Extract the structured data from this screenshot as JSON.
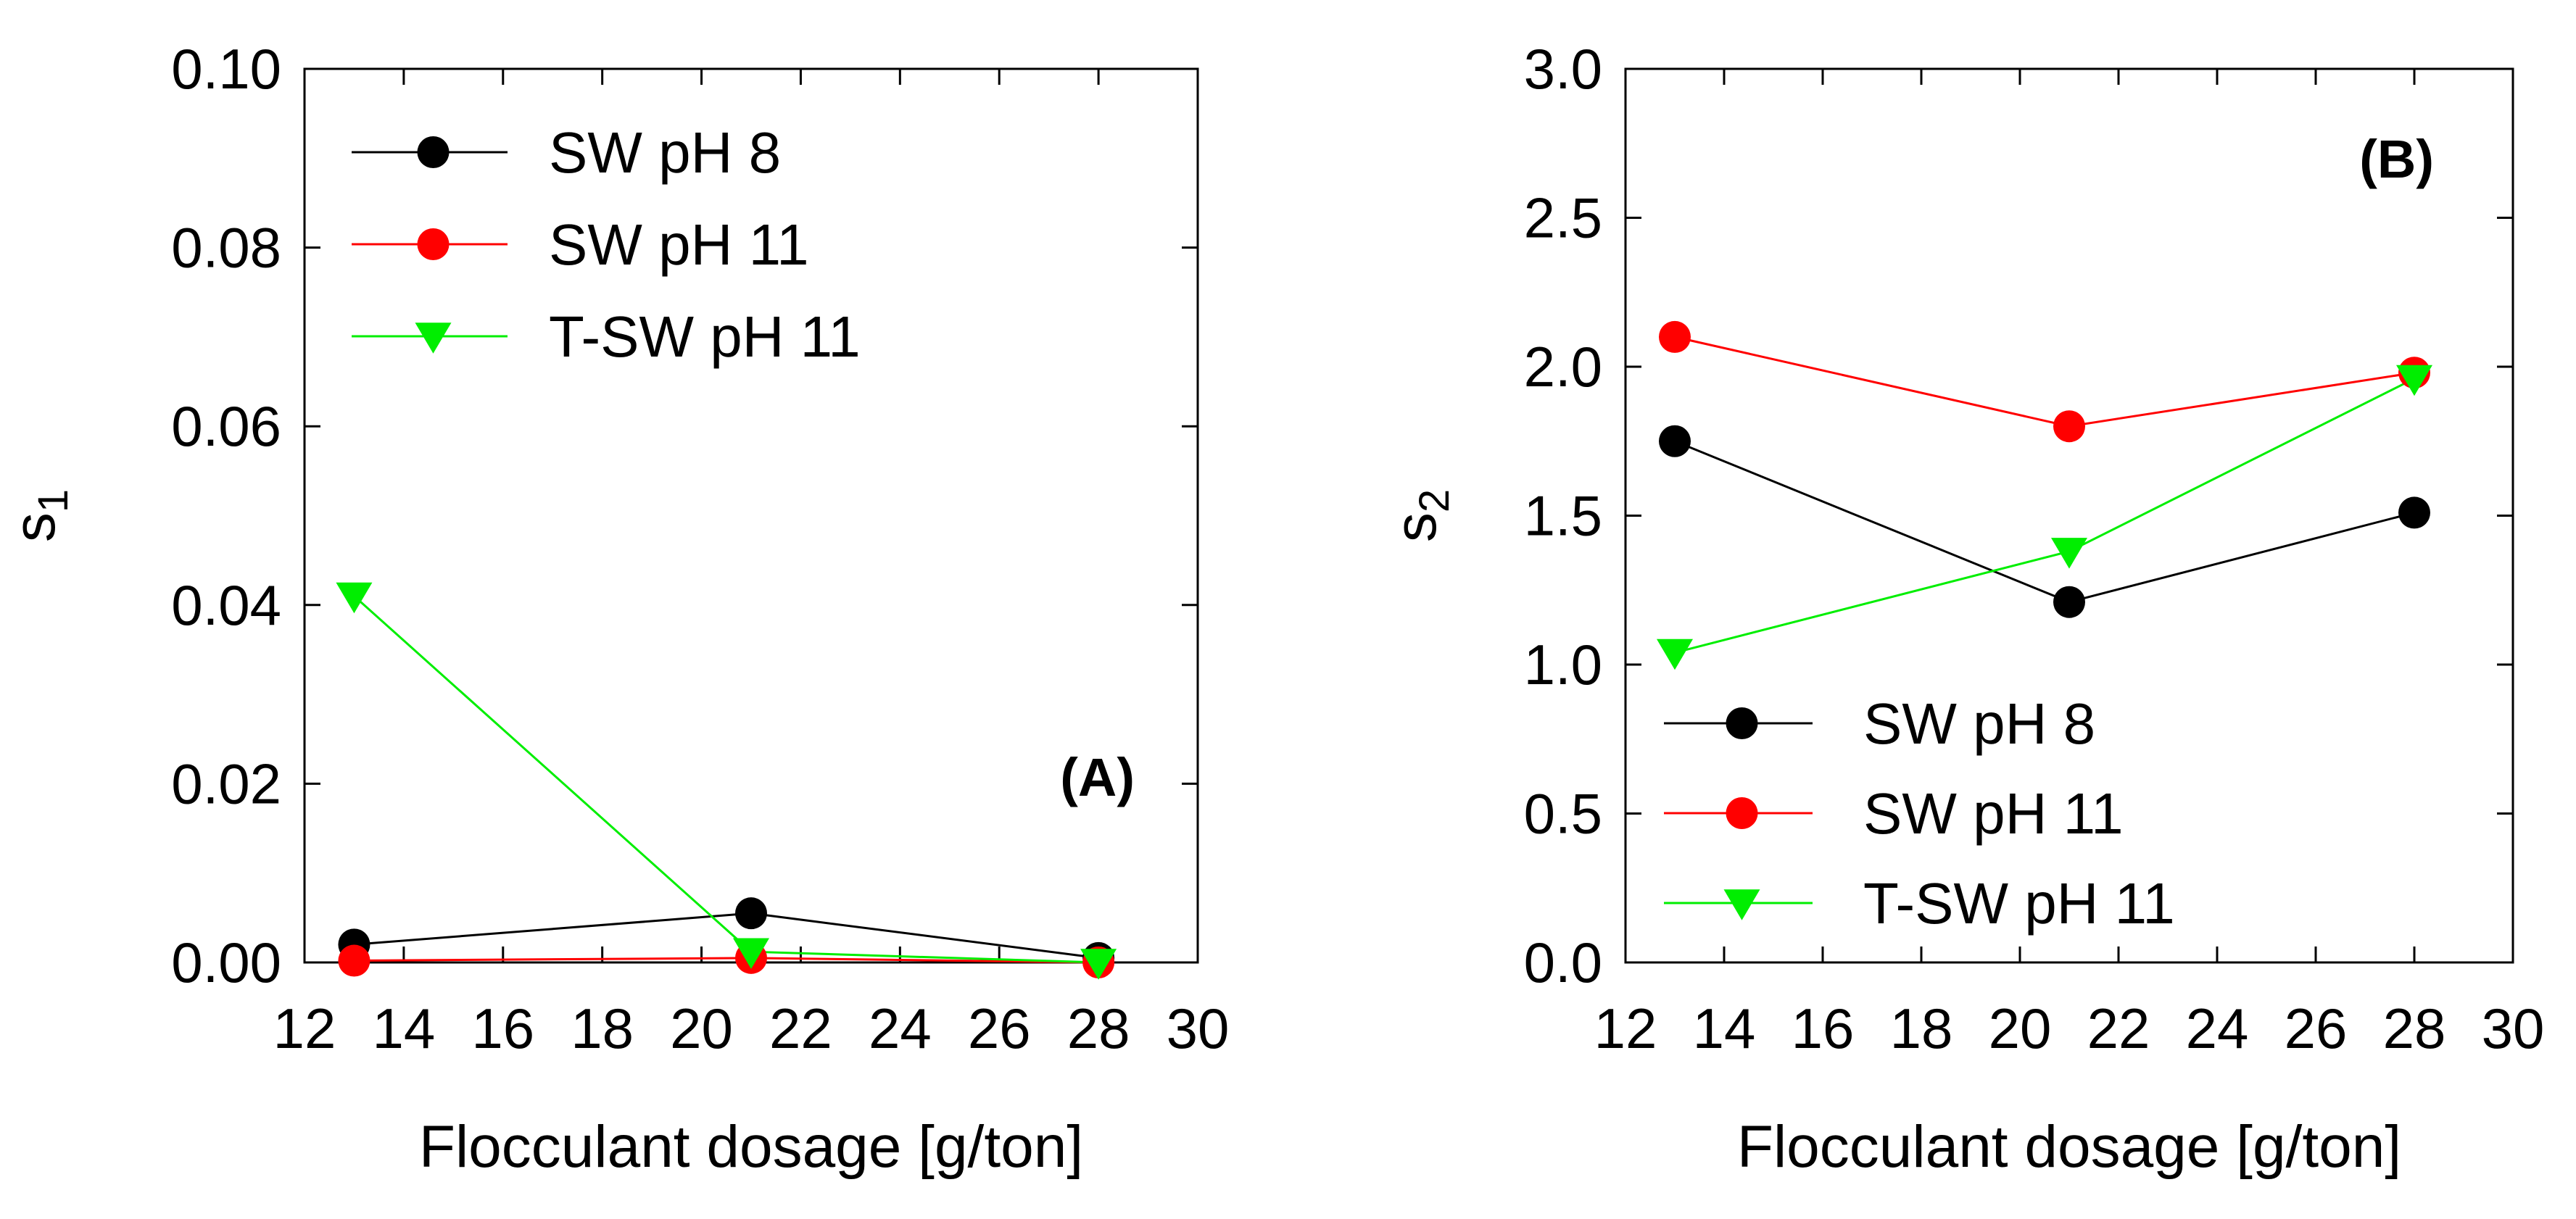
{
  "chart_data": [
    {
      "type": "line",
      "panel": "(A)",
      "xlabel": "Flocculant dosage [g/ton]",
      "ylabel": {
        "base": "s",
        "sub": "1"
      },
      "xlim": [
        12,
        30
      ],
      "ylim": [
        0,
        0.1
      ],
      "xticks": [
        12,
        14,
        16,
        18,
        20,
        22,
        24,
        26,
        28,
        30
      ],
      "xtick_labels": [
        "12",
        "14",
        "16",
        "18",
        "20",
        "22",
        "24",
        "26",
        "28",
        "30"
      ],
      "yticks": [
        0,
        0.02,
        0.04,
        0.06,
        0.08,
        0.1
      ],
      "ytick_labels": [
        "0.00",
        "0.02",
        "0.04",
        "0.06",
        "0.08",
        "0.10"
      ],
      "legend_position": "top-left",
      "x": [
        13,
        21,
        28
      ],
      "series": [
        {
          "name": "SW pH 8",
          "color": "#000000",
          "marker": "circle",
          "values": [
            0.002,
            0.0055,
            0.0005
          ]
        },
        {
          "name": "SW pH 11",
          "color": "#ff0000",
          "marker": "circle",
          "values": [
            0.0002,
            0.0005,
            0.0
          ]
        },
        {
          "name": "T-SW pH 11",
          "color": "#00ee00",
          "marker": "triangle-down",
          "values": [
            0.041,
            0.0012,
            0.0
          ]
        }
      ]
    },
    {
      "type": "line",
      "panel": "(B)",
      "xlabel": "Flocculant dosage [g/ton]",
      "ylabel": {
        "base": "s",
        "sub": "2"
      },
      "xlim": [
        12,
        30
      ],
      "ylim": [
        0,
        3.0
      ],
      "xticks": [
        12,
        14,
        16,
        18,
        20,
        22,
        24,
        26,
        28,
        30
      ],
      "xtick_labels": [
        "12",
        "14",
        "16",
        "18",
        "20",
        "22",
        "24",
        "26",
        "28",
        "30"
      ],
      "yticks": [
        0,
        0.5,
        1.0,
        1.5,
        2.0,
        2.5,
        3.0
      ],
      "ytick_labels": [
        "0.0",
        "0.5",
        "1.0",
        "1.5",
        "2.0",
        "2.5",
        "3.0"
      ],
      "legend_position": "bottom-left",
      "x": [
        13,
        21,
        28
      ],
      "series": [
        {
          "name": "SW pH 8",
          "color": "#000000",
          "marker": "circle",
          "values": [
            1.75,
            1.21,
            1.51
          ]
        },
        {
          "name": "SW pH 11",
          "color": "#ff0000",
          "marker": "circle",
          "values": [
            2.1,
            1.8,
            1.98
          ]
        },
        {
          "name": "T-SW pH 11",
          "color": "#00ee00",
          "marker": "triangle-down",
          "values": [
            1.04,
            1.38,
            1.96
          ]
        }
      ]
    }
  ]
}
